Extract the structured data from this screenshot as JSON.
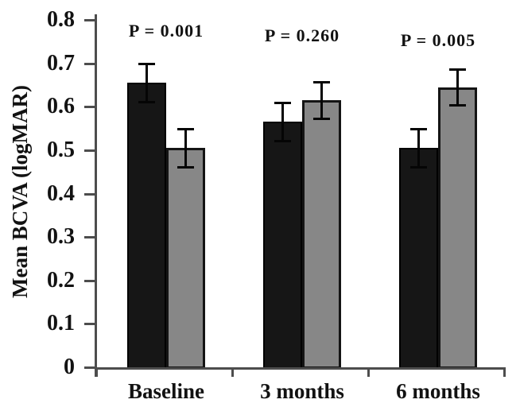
{
  "chart_data": {
    "type": "bar",
    "title": "",
    "xlabel": "",
    "ylabel": "Mean BCVA (logMAR)",
    "categories": [
      "Baseline",
      "3 months",
      "6 months"
    ],
    "series": [
      {
        "name": "black-bars",
        "color": "#161616",
        "border_color": "#000000",
        "values": [
          0.655,
          0.565,
          0.505
        ],
        "errors": [
          0.045,
          0.045,
          0.045
        ]
      },
      {
        "name": "gray-bars",
        "color": "#878787",
        "border_color": "#141414",
        "values": [
          0.505,
          0.615,
          0.645
        ],
        "errors": [
          0.045,
          0.043,
          0.042
        ]
      }
    ],
    "p_values": [
      "P = 0.001",
      "P = 0.260",
      "P = 0.005"
    ],
    "ylim": [
      0,
      0.8
    ],
    "ytick_step": 0.1,
    "ytick_labels": [
      "0",
      "0.1",
      "0.2",
      "0.3",
      "0.4",
      "0.5",
      "0.6",
      "0.7",
      "0.8"
    ],
    "grid": false,
    "legend": "none",
    "error_bar_color": "#050505",
    "axis_color": "#4d4d4d"
  }
}
